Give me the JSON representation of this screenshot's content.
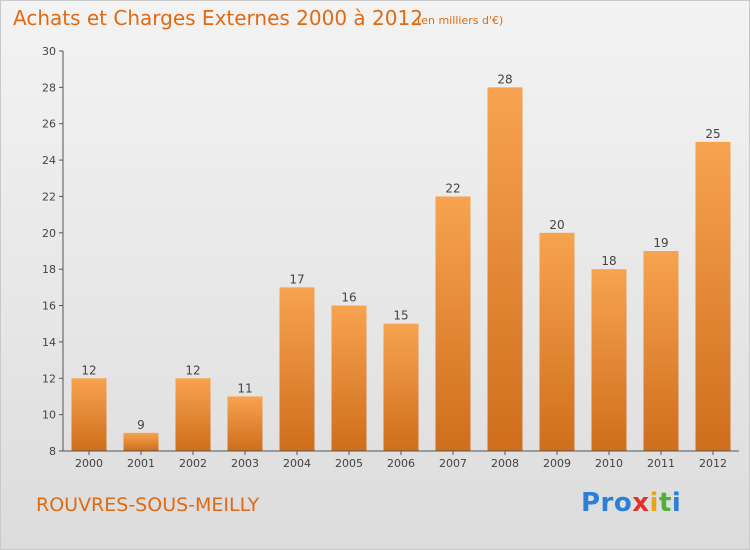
{
  "header": {
    "title": "Achats et Charges Externes 2000 à 2012",
    "subtitle": "(en milliers d'€)"
  },
  "footer": {
    "commune": "ROUVRES-SOUS-MEILLY",
    "brand": [
      "Pro",
      "x",
      "i",
      "t",
      "i"
    ]
  },
  "colors": {
    "bar_light": "#f7a350",
    "bar_dark": "#cf6e1c",
    "text_accent": "#e06a12"
  },
  "chart_data": {
    "type": "bar",
    "title": "Achats et Charges Externes 2000 à 2012",
    "subtitle": "(en milliers d'€)",
    "xlabel": "",
    "ylabel": "",
    "categories": [
      "2000",
      "2001",
      "2002",
      "2003",
      "2004",
      "2005",
      "2006",
      "2007",
      "2008",
      "2009",
      "2010",
      "2011",
      "2012"
    ],
    "values": [
      12,
      9,
      12,
      11,
      17,
      16,
      15,
      22,
      28,
      20,
      18,
      19,
      25
    ],
    "ylim": [
      8,
      30
    ],
    "yticks": [
      8,
      10,
      12,
      14,
      16,
      18,
      20,
      22,
      24,
      26,
      28,
      30
    ],
    "grid": false,
    "legend": "none"
  }
}
